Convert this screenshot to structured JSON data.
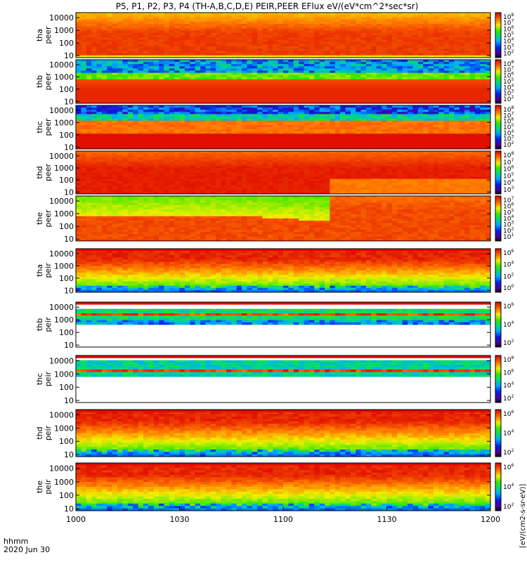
{
  "chart_data": {
    "type": "heatmap",
    "title": "P5, P1, P2, P3, P4 (TH-A,B,C,D,E) PEIR,PEER EFlux eV/(eV*cm^2*sec*sr)",
    "colorbar_label": "[eV/(cm2-s-sr-eV)]",
    "x_ticks": [
      "1000",
      "1030",
      "1100",
      "1130",
      "1200"
    ],
    "x_range": [
      "10:00",
      "12:00"
    ],
    "x_label_line1": "hhmm",
    "x_label_line2": "2020 Jun 30",
    "y_scale": "log",
    "y_range": [
      7,
      25000
    ],
    "y_ticks": [
      "10",
      "100",
      "1000",
      "10000"
    ],
    "panels": [
      {
        "probe": "tha",
        "species": "peer",
        "cb_ticks": [
          "10^2",
          "10^3",
          "10^4",
          "10^5",
          "10^6",
          "10^7",
          "10^8"
        ]
      },
      {
        "probe": "thb",
        "species": "peer",
        "cb_ticks": [
          "10^2",
          "10^3",
          "10^4",
          "10^5",
          "10^6",
          "10^7",
          "10^8"
        ]
      },
      {
        "probe": "thc",
        "species": "peer",
        "cb_ticks": [
          "10^2",
          "10^3",
          "10^4",
          "10^5",
          "10^6",
          "10^7",
          "10^8"
        ]
      },
      {
        "probe": "thd",
        "species": "peer",
        "cb_ticks": [
          "10^3",
          "10^4",
          "10^5",
          "10^6",
          "10^7",
          "10^8"
        ]
      },
      {
        "probe": "the",
        "species": "peer",
        "cb_ticks": [
          "10^1",
          "10^2",
          "10^3",
          "10^4",
          "10^5",
          "10^6",
          "10^7"
        ]
      },
      {
        "probe": "tha",
        "species": "peir",
        "cb_ticks": [
          "10^0",
          "10^2",
          "10^4",
          "10^6"
        ]
      },
      {
        "probe": "thb",
        "species": "peir",
        "cb_ticks": [
          "10^2",
          "10^4",
          "10^6"
        ]
      },
      {
        "probe": "thc",
        "species": "peir",
        "cb_ticks": [
          "10^2",
          "10^4",
          "10^6",
          "10^8"
        ]
      },
      {
        "probe": "thd",
        "species": "peir",
        "cb_ticks": [
          "10^2",
          "10^4",
          "10^6"
        ]
      },
      {
        "probe": "the",
        "species": "peir",
        "cb_ticks": [
          "10^2",
          "10^4",
          "10^6"
        ]
      }
    ]
  }
}
